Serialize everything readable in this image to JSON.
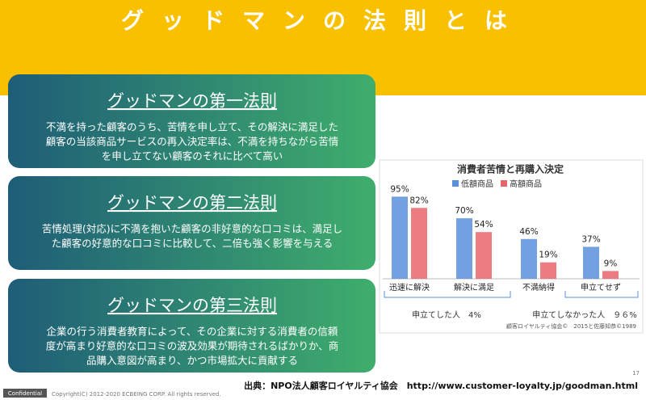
{
  "header": {
    "title": "グッドマンの法則とは"
  },
  "laws": [
    {
      "title": "グッドマンの第一法則",
      "body": [
        "不満を持った顧客のうち、苦情を申し立て、その解決に満足した",
        "顧客の当該商品サービスの再入決定率は、不満を持ちながら苦情",
        "を申し立てない顧客のそれに比べて高い"
      ]
    },
    {
      "title": "グッドマンの第二法則",
      "body": [
        "苦情処理(対応)に不満を抱いた顧客の非好意的な口コミは、満足し",
        "た顧客の好意的な口コミに比較して、二倍も強く影響を与える"
      ]
    },
    {
      "title": "グッドマンの第三法則",
      "body": [
        "企業の行う消費者教育によって、その企業に対する消費者の信頼",
        "度が高まり好意的な口コミの波及効果が期待されるばかりか、商",
        "品購入意図が高まり、かつ市場拡大に貢献する"
      ]
    }
  ],
  "chart": {
    "type": "bar",
    "title": "消費者苦情と再購入決定",
    "categories": [
      "迅速に解決",
      "解決に満足",
      "不満納得",
      "申立てせず"
    ],
    "series": [
      {
        "name": "低額商品",
        "color": "#5b8fdc",
        "values": [
          95,
          70,
          46,
          37
        ],
        "value_labels": [
          "95%",
          "70%",
          "46%",
          "37%"
        ]
      },
      {
        "name": "高額商品",
        "color": "#e8656c",
        "values": [
          82,
          54,
          19,
          9
        ],
        "value_labels": [
          "82%",
          "54%",
          "19%",
          "9%"
        ]
      }
    ],
    "group_labels": [
      "申立てした人　4%",
      "申立てしなかった人　９６%"
    ],
    "source": "顧客ロイヤルティ協会©　2015と佐藤知恭©1989"
  },
  "footer": {
    "citation": "出典：NPO法人顧客ロイヤルティ協会　http://www.customer-loyalty.jp/goodman.html",
    "confidential": "Confidential",
    "copyright": "Copyright(C) 2012-2020 ECBEING CORP. All rights reserved.",
    "page": "17"
  }
}
